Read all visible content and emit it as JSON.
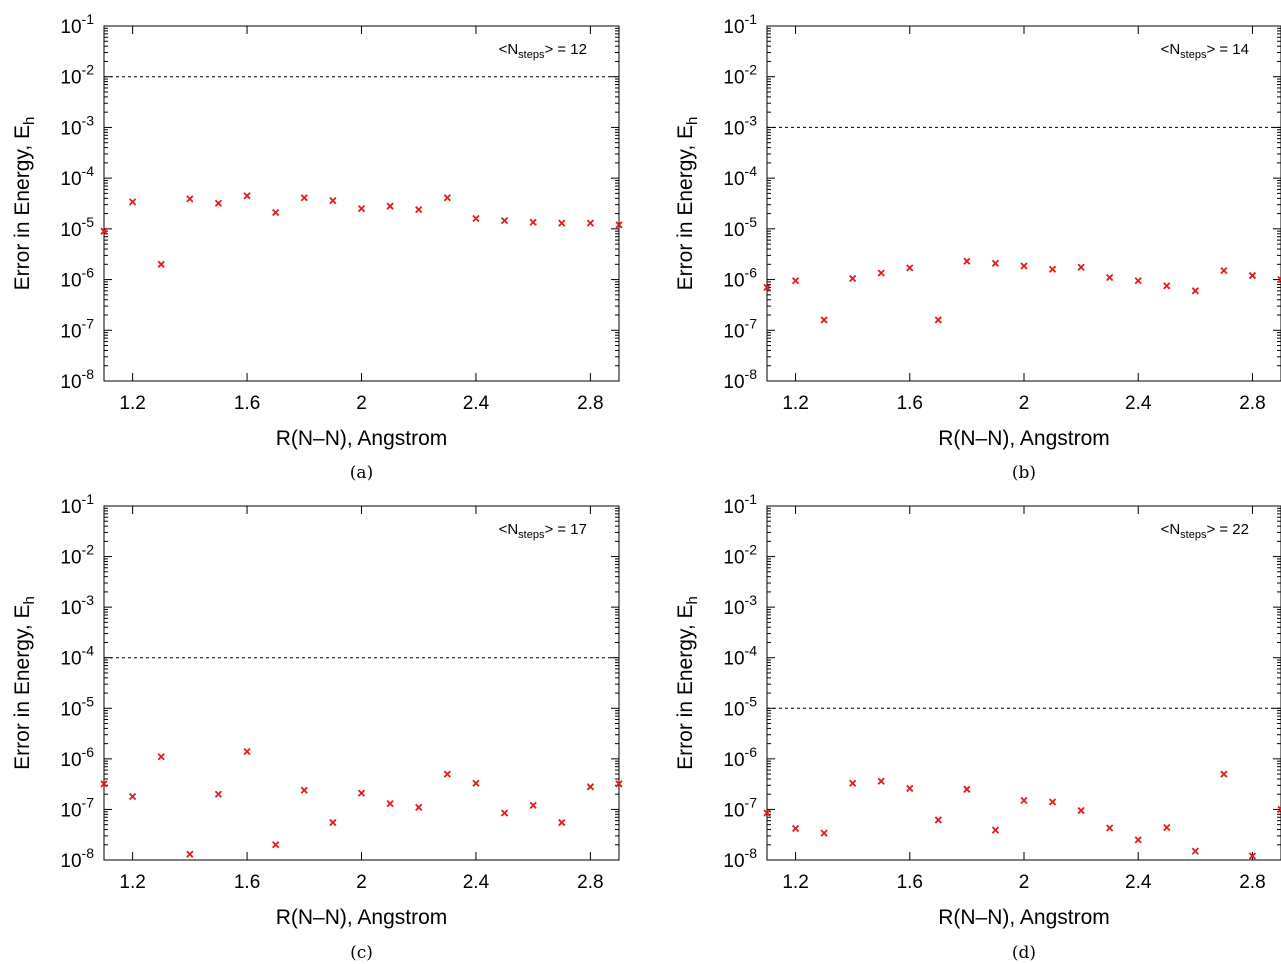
{
  "chart_data": [
    {
      "type": "scatter",
      "panel": "(a)",
      "annotation": {
        "prefix": "<N",
        "sub": "steps",
        "suffix": "> = 12"
      },
      "xlabel": "R(N–N), Angstrom",
      "ylabel": "Error in Energy, E",
      "ylabel_sub": "h",
      "xlim": [
        1.1,
        2.9
      ],
      "ylim": [
        1e-08,
        0.1
      ],
      "yscale": "log",
      "xticks": [
        "1.2",
        "1.6",
        "2",
        "2.4",
        "2.8"
      ],
      "yticks_exp": [
        "-1",
        "-2",
        "-3",
        "-4",
        "-5",
        "-6",
        "-7",
        "-8"
      ],
      "threshold": 0.01,
      "marker_color": "#e41a1c",
      "x": [
        1.1,
        1.2,
        1.3,
        1.4,
        1.5,
        1.6,
        1.7,
        1.8,
        1.9,
        2.0,
        2.1,
        2.2,
        2.3,
        2.4,
        2.5,
        2.6,
        2.7,
        2.8,
        2.9
      ],
      "y": [
        9e-06,
        3.4e-05,
        2e-06,
        3.9e-05,
        3.2e-05,
        4.5e-05,
        2.1e-05,
        4.1e-05,
        3.6e-05,
        2.5e-05,
        2.8e-05,
        2.4e-05,
        4.1e-05,
        1.6e-05,
        1.45e-05,
        1.35e-05,
        1.3e-05,
        1.3e-05,
        1.2e-05
      ]
    },
    {
      "type": "scatter",
      "panel": "(b)",
      "annotation": {
        "prefix": "<N",
        "sub": "steps",
        "suffix": "> = 14"
      },
      "xlabel": "R(N–N), Angstrom",
      "ylabel": "Error in Energy, E",
      "ylabel_sub": "h",
      "xlim": [
        1.1,
        2.9
      ],
      "ylim": [
        1e-08,
        0.1
      ],
      "yscale": "log",
      "xticks": [
        "1.2",
        "1.6",
        "2",
        "2.4",
        "2.8"
      ],
      "yticks_exp": [
        "-1",
        "-2",
        "-3",
        "-4",
        "-5",
        "-6",
        "-7",
        "-8"
      ],
      "threshold": 0.001,
      "marker_color": "#e41a1c",
      "x": [
        1.1,
        1.2,
        1.3,
        1.4,
        1.5,
        1.6,
        1.7,
        1.8,
        1.9,
        2.0,
        2.1,
        2.2,
        2.3,
        2.4,
        2.5,
        2.6,
        2.7,
        2.8,
        2.9
      ],
      "y": [
        7e-07,
        9.5e-07,
        1.6e-07,
        1.05e-06,
        1.35e-06,
        1.7e-06,
        1.6e-07,
        2.3e-06,
        2.1e-06,
        1.85e-06,
        1.6e-06,
        1.75e-06,
        1.1e-06,
        9.5e-07,
        7.5e-07,
        6e-07,
        1.5e-06,
        1.2e-06,
        1e-06
      ]
    },
    {
      "type": "scatter",
      "panel": "(c)",
      "annotation": {
        "prefix": "<N",
        "sub": "steps",
        "suffix": "> = 17"
      },
      "xlabel": "R(N–N), Angstrom",
      "ylabel": "Error in Energy, E",
      "ylabel_sub": "h",
      "xlim": [
        1.1,
        2.9
      ],
      "ylim": [
        1e-08,
        0.1
      ],
      "yscale": "log",
      "xticks": [
        "1.2",
        "1.6",
        "2",
        "2.4",
        "2.8"
      ],
      "yticks_exp": [
        "-1",
        "-2",
        "-3",
        "-4",
        "-5",
        "-6",
        "-7",
        "-8"
      ],
      "threshold": 0.0001,
      "marker_color": "#e41a1c",
      "x": [
        1.1,
        1.2,
        1.3,
        1.4,
        1.5,
        1.6,
        1.7,
        1.8,
        1.9,
        2.0,
        2.1,
        2.2,
        2.3,
        2.4,
        2.5,
        2.6,
        2.7,
        2.8,
        2.9
      ],
      "y": [
        3.2e-07,
        1.8e-07,
        1.1e-06,
        1.3e-08,
        2e-07,
        1.4e-06,
        2e-08,
        2.4e-07,
        5.5e-08,
        2.1e-07,
        1.3e-07,
        1.1e-07,
        5e-07,
        3.3e-07,
        8.5e-08,
        1.2e-07,
        5.5e-08,
        2.8e-07,
        3.2e-07
      ]
    },
    {
      "type": "scatter",
      "panel": "(d)",
      "annotation": {
        "prefix": "<N",
        "sub": "steps",
        "suffix": "> = 22"
      },
      "xlabel": "R(N–N), Angstrom",
      "ylabel": "Error in Energy, E",
      "ylabel_sub": "h",
      "xlim": [
        1.1,
        2.9
      ],
      "ylim": [
        1e-08,
        0.1
      ],
      "yscale": "log",
      "xticks": [
        "1.2",
        "1.6",
        "2",
        "2.4",
        "2.8"
      ],
      "yticks_exp": [
        "-1",
        "-2",
        "-3",
        "-4",
        "-5",
        "-6",
        "-7",
        "-8"
      ],
      "threshold": 1e-05,
      "marker_color": "#e41a1c",
      "x": [
        1.1,
        1.2,
        1.3,
        1.4,
        1.5,
        1.6,
        1.7,
        1.8,
        1.9,
        2.0,
        2.1,
        2.2,
        2.3,
        2.4,
        2.5,
        2.6,
        2.7,
        2.8,
        2.9
      ],
      "y": [
        8.5e-08,
        4.2e-08,
        3.4e-08,
        3.3e-07,
        3.6e-07,
        2.6e-07,
        6.2e-08,
        2.5e-07,
        3.9e-08,
        1.5e-07,
        1.4e-07,
        9.5e-08,
        4.3e-08,
        2.5e-08,
        4.4e-08,
        1.5e-08,
        5e-07,
        1.2e-08,
        1e-07
      ]
    }
  ]
}
